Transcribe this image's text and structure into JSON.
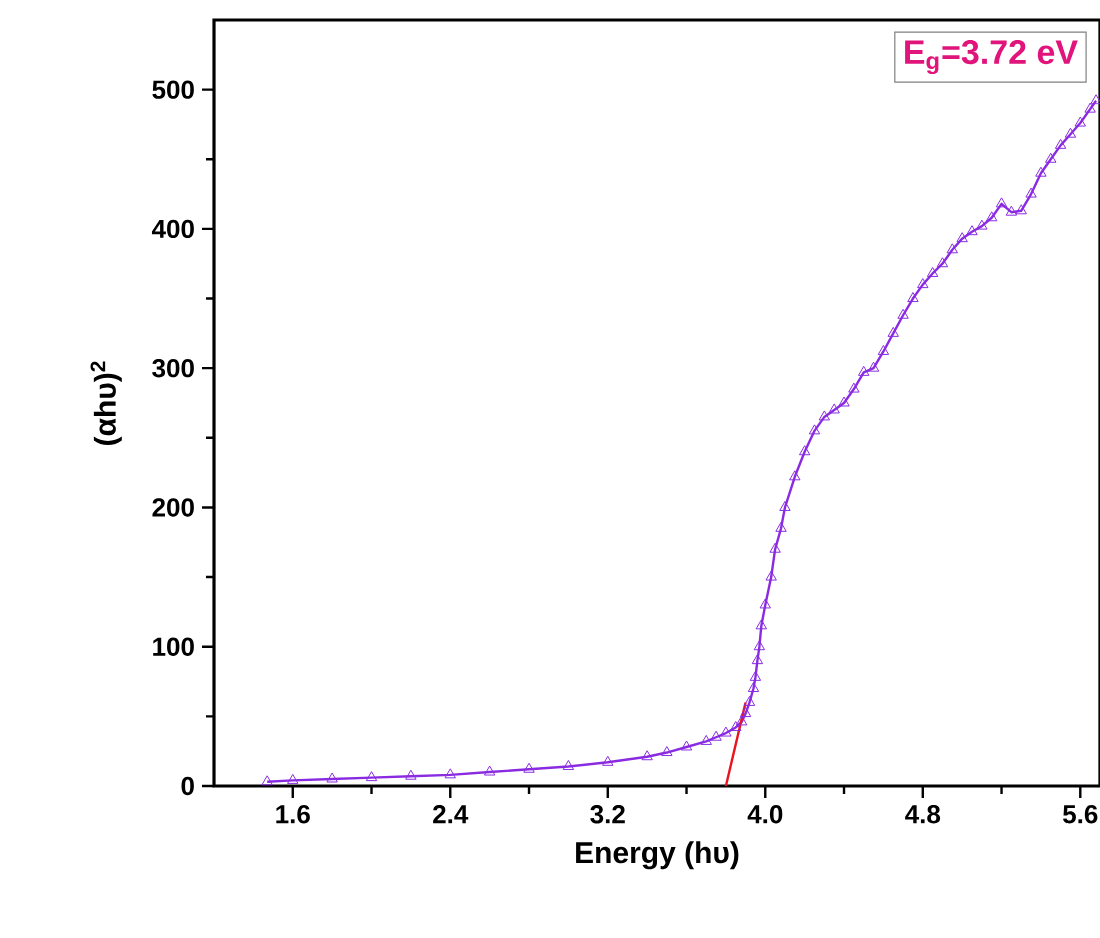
{
  "chart_data": {
    "type": "line",
    "xlabel": "Energy (hυ)",
    "ylabel": "(αhυ)$^{2}$",
    "annotations": [
      "E$_{g}$=3.72 eV"
    ],
    "xlim": [
      1.2,
      5.7
    ],
    "ylim": [
      0,
      550
    ],
    "xticks": [
      {
        "value": 1.6,
        "label": "1.6"
      },
      {
        "value": 2.4,
        "label": "2.4"
      },
      {
        "value": 3.2,
        "label": "3.2"
      },
      {
        "value": 4,
        "label": "4.0"
      },
      {
        "value": 4.8,
        "label": "4.8"
      },
      {
        "value": 5.6,
        "label": "5.6"
      }
    ],
    "yticks": [
      0,
      100,
      200,
      300,
      400,
      500
    ],
    "series": [
      {
        "color": "#8a2be2",
        "marker": "triangle",
        "x": [
          1.47,
          1.6,
          1.8,
          2.0,
          2.2,
          2.4,
          2.6,
          2.8,
          3.0,
          3.2,
          3.4,
          3.5,
          3.6,
          3.7,
          3.75,
          3.8,
          3.85,
          3.88,
          3.9,
          3.92,
          3.94,
          3.95,
          3.96,
          3.97,
          3.98,
          4.0,
          4.03,
          4.05,
          4.08,
          4.1,
          4.15,
          4.2,
          4.25,
          4.3,
          4.35,
          4.4,
          4.45,
          4.5,
          4.55,
          4.6,
          4.65,
          4.7,
          4.75,
          4.8,
          4.85,
          4.9,
          4.95,
          5.0,
          5.05,
          5.1,
          5.15,
          5.2,
          5.25,
          5.3,
          5.35,
          5.4,
          5.45,
          5.5,
          5.55,
          5.6,
          5.65,
          5.68
        ],
        "values": [
          3,
          4,
          5,
          6,
          7,
          8,
          10,
          12,
          14,
          17,
          21,
          24,
          28,
          32,
          35,
          38,
          42,
          46,
          52,
          60,
          70,
          78,
          90,
          100,
          115,
          130,
          150,
          170,
          185,
          200,
          222,
          240,
          255,
          265,
          270,
          275,
          285,
          297,
          300,
          312,
          325,
          338,
          350,
          360,
          368,
          375,
          385,
          393,
          398,
          402,
          408,
          418,
          412,
          413,
          425,
          440,
          450,
          460,
          468,
          476,
          486,
          492
        ]
      },
      {
        "type": "line",
        "color": "#e8141e",
        "marker": "none",
        "x": [
          3.8,
          3.9
        ],
        "values": [
          0,
          60
        ]
      }
    ]
  }
}
